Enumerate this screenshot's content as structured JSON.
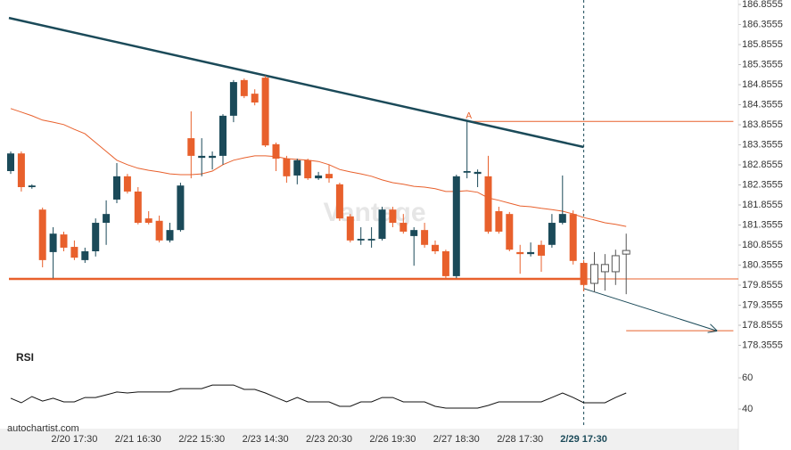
{
  "chart_data": {
    "type": "candlestick",
    "categories": [
      null,
      null,
      null,
      null,
      null,
      null,
      "2/20 17:30",
      null,
      null,
      null,
      null,
      null,
      "2/21 16:30",
      null,
      null,
      null,
      null,
      null,
      "2/22 15:30",
      null,
      null,
      null,
      null,
      null,
      "2/23 14:30",
      null,
      null,
      null,
      null,
      null,
      "2/23 20:30",
      null,
      null,
      null,
      null,
      null,
      "2/26 19:30",
      null,
      null,
      null,
      null,
      null,
      "2/27 18:30",
      null,
      null,
      null,
      null,
      null,
      "2/28 17:30",
      null,
      null,
      null,
      null,
      null,
      "2/29 17:30",
      null,
      null,
      null,
      null
    ],
    "open": [
      182.7,
      183.14,
      182.3,
      181.74,
      180.68,
      181.12,
      180.81,
      180.48,
      180.7,
      181.41,
      181.99,
      182.57,
      182.19,
      181.52,
      181.46,
      180.97,
      181.23,
      183.52,
      183.03,
      183.03,
      183.08,
      184.08,
      184.97,
      184.63,
      185.03,
      183.37,
      183.01,
      182.59,
      182.97,
      182.52,
      182.63,
      182.37,
      181.57,
      180.97,
      180.97,
      181.01,
      181.74,
      181.41,
      181.08,
      181.23,
      180.86,
      180.7,
      180.08,
      182.66,
      182.63,
      182.57,
      181.7,
      181.63,
      180.68,
      180.63,
      180.86,
      180.86,
      181.41,
      181.63,
      180.41,
      179.9,
      180.19,
      180.19,
      180.63
    ],
    "high": [
      183.19,
      183.19,
      182.37,
      181.79,
      181.3,
      181.19,
      180.97,
      180.79,
      181.52,
      181.97,
      182.9,
      182.63,
      182.3,
      181.7,
      181.59,
      181.41,
      182.41,
      184.19,
      183.52,
      183.19,
      184.12,
      184.97,
      185.01,
      184.74,
      185.08,
      183.41,
      183.08,
      183.01,
      183.01,
      182.68,
      182.86,
      182.41,
      181.63,
      181.3,
      181.3,
      181.81,
      181.81,
      181.63,
      181.3,
      181.41,
      180.97,
      180.74,
      182.61,
      183.97,
      182.74,
      183.08,
      181.81,
      181.68,
      180.86,
      180.92,
      180.97,
      181.63,
      182.59,
      181.72,
      180.48,
      180.68,
      180.63,
      180.74,
      181.14
    ],
    "low": [
      182.63,
      182.19,
      182.26,
      180.3,
      180.03,
      180.7,
      180.48,
      180.41,
      180.57,
      180.86,
      181.9,
      182.14,
      181.37,
      181.37,
      180.92,
      180.92,
      181.19,
      182.52,
      182.57,
      182.74,
      182.86,
      183.92,
      184.52,
      184.34,
      183.3,
      182.7,
      182.41,
      182.37,
      182.48,
      182.48,
      182.41,
      181.46,
      180.92,
      180.86,
      180.79,
      180.97,
      181.3,
      181.14,
      180.34,
      180.79,
      180.63,
      180.03,
      180.03,
      182.52,
      182.3,
      181.14,
      181.14,
      180.7,
      180.14,
      180.57,
      180.19,
      180.79,
      181.37,
      180.37,
      179.7,
      179.68,
      179.72,
      179.86,
      179.63
    ],
    "close": [
      183.14,
      182.3,
      182.34,
      180.48,
      181.14,
      180.79,
      180.54,
      180.7,
      181.41,
      181.63,
      182.57,
      182.19,
      181.41,
      181.41,
      180.97,
      181.23,
      182.34,
      183.08,
      183.08,
      183.08,
      184.08,
      184.92,
      184.57,
      184.41,
      183.34,
      183.01,
      182.57,
      182.97,
      182.52,
      182.59,
      182.52,
      181.52,
      180.97,
      181.01,
      181.01,
      181.74,
      181.41,
      181.19,
      181.23,
      180.86,
      180.7,
      180.08,
      182.57,
      182.7,
      182.68,
      181.19,
      181.19,
      180.74,
      180.63,
      180.68,
      180.59,
      181.41,
      181.63,
      180.46,
      179.86,
      180.37,
      180.37,
      180.59,
      180.72
    ],
    "up_color": "#1b4a59",
    "down_color": "#e8602c",
    "hollow_color": "#ffffff",
    "ylim": [
      178.1888,
      186.9666
    ],
    "yticks": [
      186.8555,
      186.3555,
      185.8555,
      185.3555,
      184.8555,
      184.3555,
      183.8555,
      183.3555,
      182.8555,
      182.3555,
      181.8555,
      181.3555,
      180.8555,
      180.3555,
      179.8555,
      179.3555,
      178.8555,
      178.3555
    ],
    "moving_average": {
      "color": "#e8602c",
      "values": [
        184.26,
        184.17,
        184.08,
        183.97,
        183.92,
        183.86,
        183.74,
        183.63,
        183.41,
        183.19,
        182.97,
        182.86,
        182.77,
        182.72,
        182.68,
        182.63,
        182.61,
        182.61,
        182.63,
        182.7,
        182.86,
        182.97,
        183.03,
        183.08,
        183.08,
        183.06,
        183.01,
        182.99,
        182.97,
        182.94,
        182.86,
        182.74,
        182.68,
        182.63,
        182.57,
        182.48,
        182.41,
        182.37,
        182.32,
        182.3,
        182.26,
        182.19,
        182.19,
        182.21,
        182.17,
        182.03,
        181.97,
        181.9,
        181.83,
        181.81,
        181.77,
        181.74,
        181.7,
        181.63,
        181.54,
        181.48,
        181.41,
        181.37,
        181.32
      ]
    },
    "resistance": {
      "color": "#1b4a59",
      "x": [
        -0.17,
        54
      ],
      "y": [
        186.52,
        183.3
      ]
    },
    "support": {
      "color": "#e8602c",
      "x": [
        -0.17,
        54
      ],
      "y": [
        180.01,
        180.01
      ]
    },
    "forecast": {
      "color": "#1b4a59",
      "x": [
        54,
        66.5
      ],
      "y": [
        179.77,
        178.72
      ]
    },
    "forecast_level": {
      "color": "#e8602c",
      "x": [
        58,
        68.1
      ],
      "y": [
        178.72,
        178.72
      ]
    },
    "level_a": {
      "label": "A",
      "color": "#e8602c",
      "x": [
        43,
        68.1
      ],
      "y": [
        183.94,
        183.94
      ]
    },
    "rsi": {
      "title": "RSI",
      "color": "#111111",
      "ylim": [
        28,
        76.6
      ],
      "yticks": [
        40,
        60
      ],
      "values": [
        46.9,
        44.0,
        48.0,
        45.1,
        46.9,
        44.6,
        44.6,
        47.4,
        47.4,
        49.1,
        50.9,
        50.3,
        50.9,
        50.9,
        50.9,
        50.9,
        53.1,
        53.1,
        53.1,
        55.4,
        55.4,
        55.4,
        52.6,
        52.6,
        50.3,
        47.4,
        44.6,
        47.4,
        44.6,
        44.6,
        44.6,
        41.7,
        41.7,
        44.6,
        44.6,
        47.4,
        47.4,
        44.6,
        44.6,
        44.6,
        41.7,
        40.6,
        40.6,
        40.6,
        40.6,
        42.3,
        44.6,
        44.6,
        44.6,
        44.6,
        44.6,
        47.4,
        50.3,
        47.4,
        44.0,
        44.0,
        44.0,
        47.4,
        50.3
      ]
    },
    "watermark": "Vantage",
    "source": "autochartist.com"
  }
}
